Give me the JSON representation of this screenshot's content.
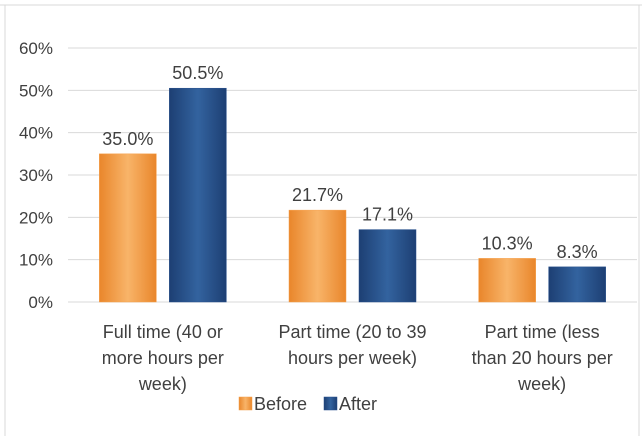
{
  "chart_data": {
    "type": "bar",
    "categories": [
      [
        "Full time (40 or",
        "more hours per",
        "week)"
      ],
      [
        "Part time (20 to 39",
        "hours per week)"
      ],
      [
        "Part time (less",
        "than 20 hours per",
        "week)"
      ]
    ],
    "series": [
      {
        "name": "Before",
        "values": [
          35.0,
          21.7,
          10.3
        ],
        "labels": [
          "35.0%",
          "21.7%",
          "10.3%"
        ],
        "color": "#F6A04A"
      },
      {
        "name": "After",
        "values": [
          50.5,
          17.1,
          8.3
        ],
        "labels": [
          "50.5%",
          "17.1%",
          "8.3%"
        ],
        "color": "#264F8C"
      }
    ],
    "ylim": [
      0,
      60
    ],
    "yticks": [
      "0%",
      "10%",
      "20%",
      "30%",
      "40%",
      "50%",
      "60%"
    ],
    "ytick_values": [
      0,
      10,
      20,
      30,
      40,
      50,
      60
    ],
    "grid": true,
    "legend_position": "bottom",
    "title": "",
    "xlabel": "",
    "ylabel": ""
  }
}
